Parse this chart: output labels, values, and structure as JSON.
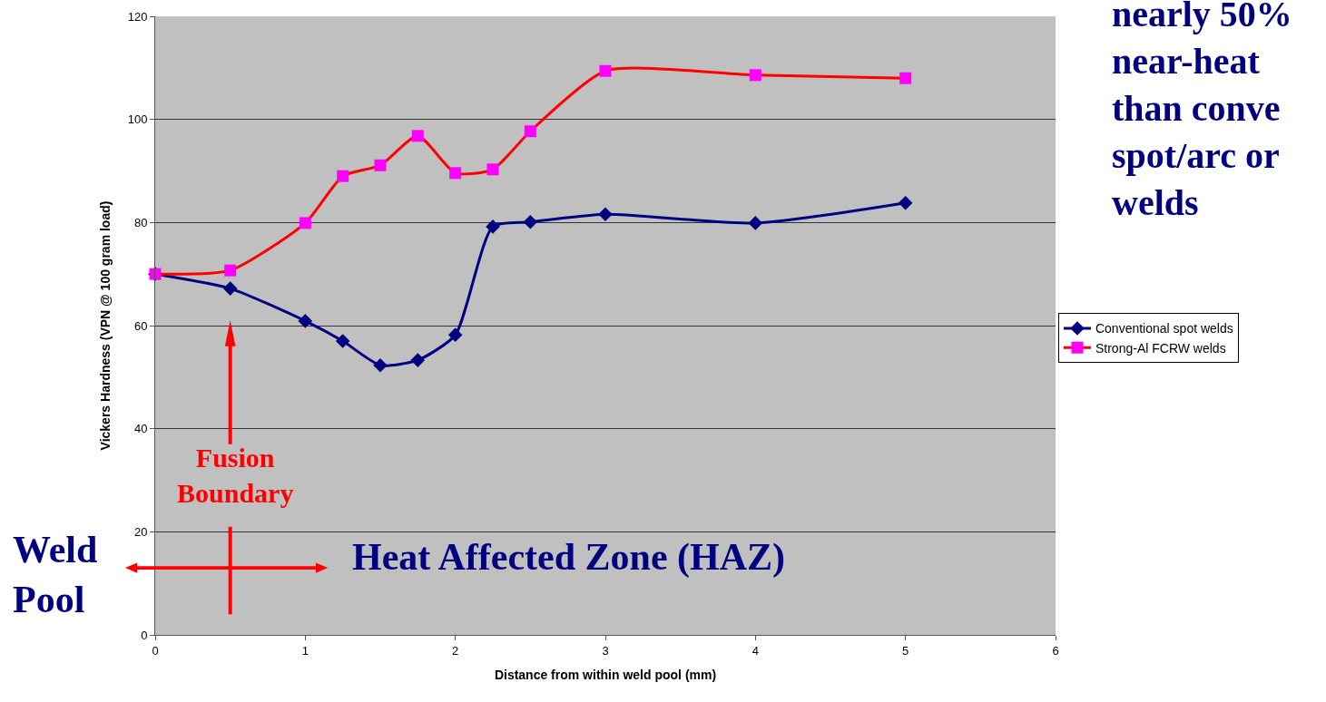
{
  "chart_data": {
    "type": "line",
    "xlabel": "Distance from within weld pool (mm)",
    "ylabel": "Vickers Hardness (VPN @ 100 gram load)",
    "x": [
      0,
      0.5,
      1,
      1.25,
      1.5,
      1.75,
      2,
      2.25,
      2.5,
      3,
      4,
      5
    ],
    "series": [
      {
        "name": "Conventional spot welds",
        "color": "#000080",
        "marker": "diamond",
        "values": [
          70,
          67.2,
          60.9,
          57.0,
          52.3,
          53.3,
          58.2,
          79.2,
          80.1,
          81.6,
          79.9,
          83.8
        ]
      },
      {
        "name": "Strong-Al FCRW welds",
        "color": "#ff0000",
        "colors": [
          "#ff00ff",
          "#ff00ff",
          "#ff00ff",
          "#ff00ff",
          "#ff00ff",
          "#ff00ff",
          "#ff00ff",
          "#ff00ff",
          "#ff00ff",
          "#ff00ff",
          "#ff00ff",
          "#ff00ff"
        ],
        "marker": "square",
        "values": [
          70,
          70.7,
          79.9,
          89.0,
          91.1,
          96.8,
          89.6,
          90.3,
          97.7,
          109.4,
          108.6,
          108.0
        ]
      }
    ],
    "xlim": [
      0,
      6
    ],
    "xticks": [
      0,
      1,
      2,
      3,
      4,
      5,
      6
    ],
    "ylim": [
      0,
      120
    ],
    "yticks": [
      0,
      20,
      40,
      60,
      80,
      100,
      120
    ],
    "grid": "y",
    "legend": "right",
    "line_style": "solid",
    "annotations": [
      "Fusion\nBoundary",
      "Weld\nPool",
      "Heat Affected Zone (HAZ)",
      "nearly 50%\nnear-heat\nthan conve\nspot/arc or\nwelds"
    ]
  }
}
